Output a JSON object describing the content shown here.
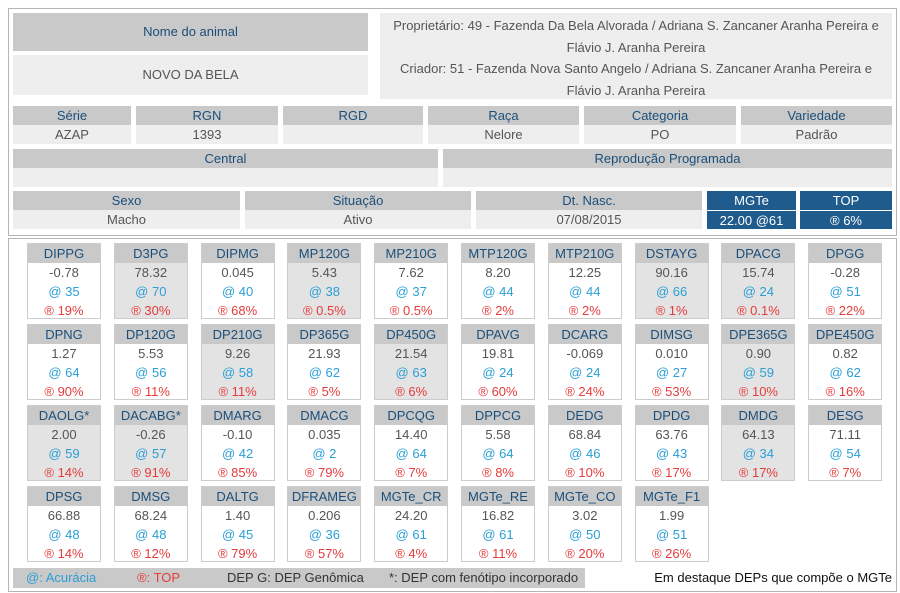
{
  "header": {
    "name_label": "Nome do animal",
    "name": "NOVO DA BELA",
    "owner": "Proprietário: 49 - Fazenda Da Bela Alvorada / Adriana S. Zancaner Aranha Pereira e Flávio J. Aranha Pereira",
    "breeder": "Criador: 51 - Fazenda Nova Santo Angelo / Adriana S. Zancaner Aranha Pereira e Flávio J. Aranha Pereira"
  },
  "fields": [
    {
      "label": "Série",
      "value": "AZAP"
    },
    {
      "label": "RGN",
      "value": "1393"
    },
    {
      "label": "RGD"
    },
    {
      "label": "Raça",
      "value": "Nelore"
    },
    {
      "label": "Categoria",
      "value": "PO"
    },
    {
      "label": "Variedade",
      "value": "Padrão"
    }
  ],
  "fields2": [
    {
      "label": "Central"
    },
    {
      "label": "Reprodução Programada"
    }
  ],
  "fields3": [
    {
      "label": "Sexo",
      "value": "Macho"
    },
    {
      "label": "Situação",
      "value": "Ativo"
    },
    {
      "label": "Dt. Nasc.",
      "value": "07/08/2015"
    },
    {
      "label": "MGTe",
      "value": "22.00  @61"
    },
    {
      "label": "TOP",
      "value": "® 6%"
    }
  ],
  "deps": [
    {
      "name": "DIPPG",
      "value": "-0.78",
      "acc": "@ 35",
      "top": "® 19%",
      "highlight": false
    },
    {
      "name": "D3PG",
      "value": "78.32",
      "acc": "@ 70",
      "top": "® 30%",
      "highlight": true
    },
    {
      "name": "DIPMG",
      "value": "0.045",
      "acc": "@ 40",
      "top": "® 68%",
      "highlight": false
    },
    {
      "name": "MP120G",
      "value": "5.43",
      "acc": "@ 38",
      "top": "® 0.5%",
      "highlight": true
    },
    {
      "name": "MP210G",
      "value": "7.62",
      "acc": "@ 37",
      "top": "® 0.5%",
      "highlight": false
    },
    {
      "name": "MTP120G",
      "value": "8.20",
      "acc": "@ 44",
      "top": "® 2%",
      "highlight": false
    },
    {
      "name": "MTP210G",
      "value": "12.25",
      "acc": "@ 44",
      "top": "® 2%",
      "highlight": false
    },
    {
      "name": "DSTAYG",
      "value": "90.16",
      "acc": "@ 66",
      "top": "® 1%",
      "highlight": true
    },
    {
      "name": "DPACG",
      "value": "15.74",
      "acc": "@ 24",
      "top": "® 0.1%",
      "highlight": true
    },
    {
      "name": "DPGG",
      "value": "-0.28",
      "acc": "@ 51",
      "top": "® 22%",
      "highlight": false
    },
    {
      "name": "DPNG",
      "value": "1.27",
      "acc": "@ 64",
      "top": "® 90%",
      "highlight": false
    },
    {
      "name": "DP120G",
      "value": "5.53",
      "acc": "@ 56",
      "top": "® 11%",
      "highlight": false
    },
    {
      "name": "DP210G",
      "value": "9.26",
      "acc": "@ 58",
      "top": "® 11%",
      "highlight": true
    },
    {
      "name": "DP365G",
      "value": "21.93",
      "acc": "@ 62",
      "top": "® 5%",
      "highlight": false
    },
    {
      "name": "DP450G",
      "value": "21.54",
      "acc": "@ 63",
      "top": "® 6%",
      "highlight": true
    },
    {
      "name": "DPAVG",
      "value": "19.81",
      "acc": "@ 24",
      "top": "® 60%",
      "highlight": false
    },
    {
      "name": "DCARG",
      "value": "-0.069",
      "acc": "@ 24",
      "top": "® 24%",
      "highlight": false
    },
    {
      "name": "DIMSG",
      "value": "0.010",
      "acc": "@ 27",
      "top": "® 53%",
      "highlight": false
    },
    {
      "name": "DPE365G",
      "value": "0.90",
      "acc": "@ 59",
      "top": "® 10%",
      "highlight": true
    },
    {
      "name": "DPE450G",
      "value": "0.82",
      "acc": "@ 62",
      "top": "® 16%",
      "highlight": false
    },
    {
      "name": "DAOLG*",
      "value": "2.00",
      "acc": "@ 59",
      "top": "® 14%",
      "highlight": true
    },
    {
      "name": "DACABG*",
      "value": "-0.26",
      "acc": "@ 57",
      "top": "® 91%",
      "highlight": true
    },
    {
      "name": "DMARG",
      "value": "-0.10",
      "acc": "@ 42",
      "top": "® 85%",
      "highlight": false
    },
    {
      "name": "DMACG",
      "value": "0.035",
      "acc": "@ 2",
      "top": "® 79%",
      "highlight": false
    },
    {
      "name": "DPCQG",
      "value": "14.40",
      "acc": "@ 64",
      "top": "® 7%",
      "highlight": false
    },
    {
      "name": "DPPCG",
      "value": "5.58",
      "acc": "@ 64",
      "top": "® 8%",
      "highlight": false
    },
    {
      "name": "DEDG",
      "value": "68.84",
      "acc": "@ 46",
      "top": "® 10%",
      "highlight": false
    },
    {
      "name": "DPDG",
      "value": "63.76",
      "acc": "@ 43",
      "top": "® 17%",
      "highlight": false
    },
    {
      "name": "DMDG",
      "value": "64.13",
      "acc": "@ 34",
      "top": "® 17%",
      "highlight": true
    },
    {
      "name": "DESG",
      "value": "71.11",
      "acc": "@ 54",
      "top": "® 7%",
      "highlight": false
    },
    {
      "name": "DPSG",
      "value": "66.88",
      "acc": "@ 48",
      "top": "® 14%",
      "highlight": false
    },
    {
      "name": "DMSG",
      "value": "68.24",
      "acc": "@ 48",
      "top": "® 12%",
      "highlight": false
    },
    {
      "name": "DALTG",
      "value": "1.40",
      "acc": "@ 45",
      "top": "® 79%",
      "highlight": false
    },
    {
      "name": "DFRAMEG",
      "value": "0.206",
      "acc": "@ 36",
      "top": "® 57%",
      "highlight": false
    },
    {
      "name": "MGTe_CR",
      "value": "24.20",
      "acc": "@ 61",
      "top": "® 4%",
      "highlight": false
    },
    {
      "name": "MGTe_RE",
      "value": "16.82",
      "acc": "@ 61",
      "top": "® 11%",
      "highlight": false
    },
    {
      "name": "MGTe_CO",
      "value": "3.02",
      "acc": "@ 50",
      "top": "® 20%",
      "highlight": false
    },
    {
      "name": "MGTe_F1",
      "value": "1.99",
      "acc": "@ 51",
      "top": "® 26%",
      "highlight": false
    }
  ],
  "legend": {
    "accuracy": "@: Acurácia",
    "top": "®: TOP",
    "genomic": "DEP G: DEP Genômica",
    "phenotype": "*: DEP com fenótipo incorporado",
    "note": "Em destaque DEPs que compõe o MGTe"
  }
}
